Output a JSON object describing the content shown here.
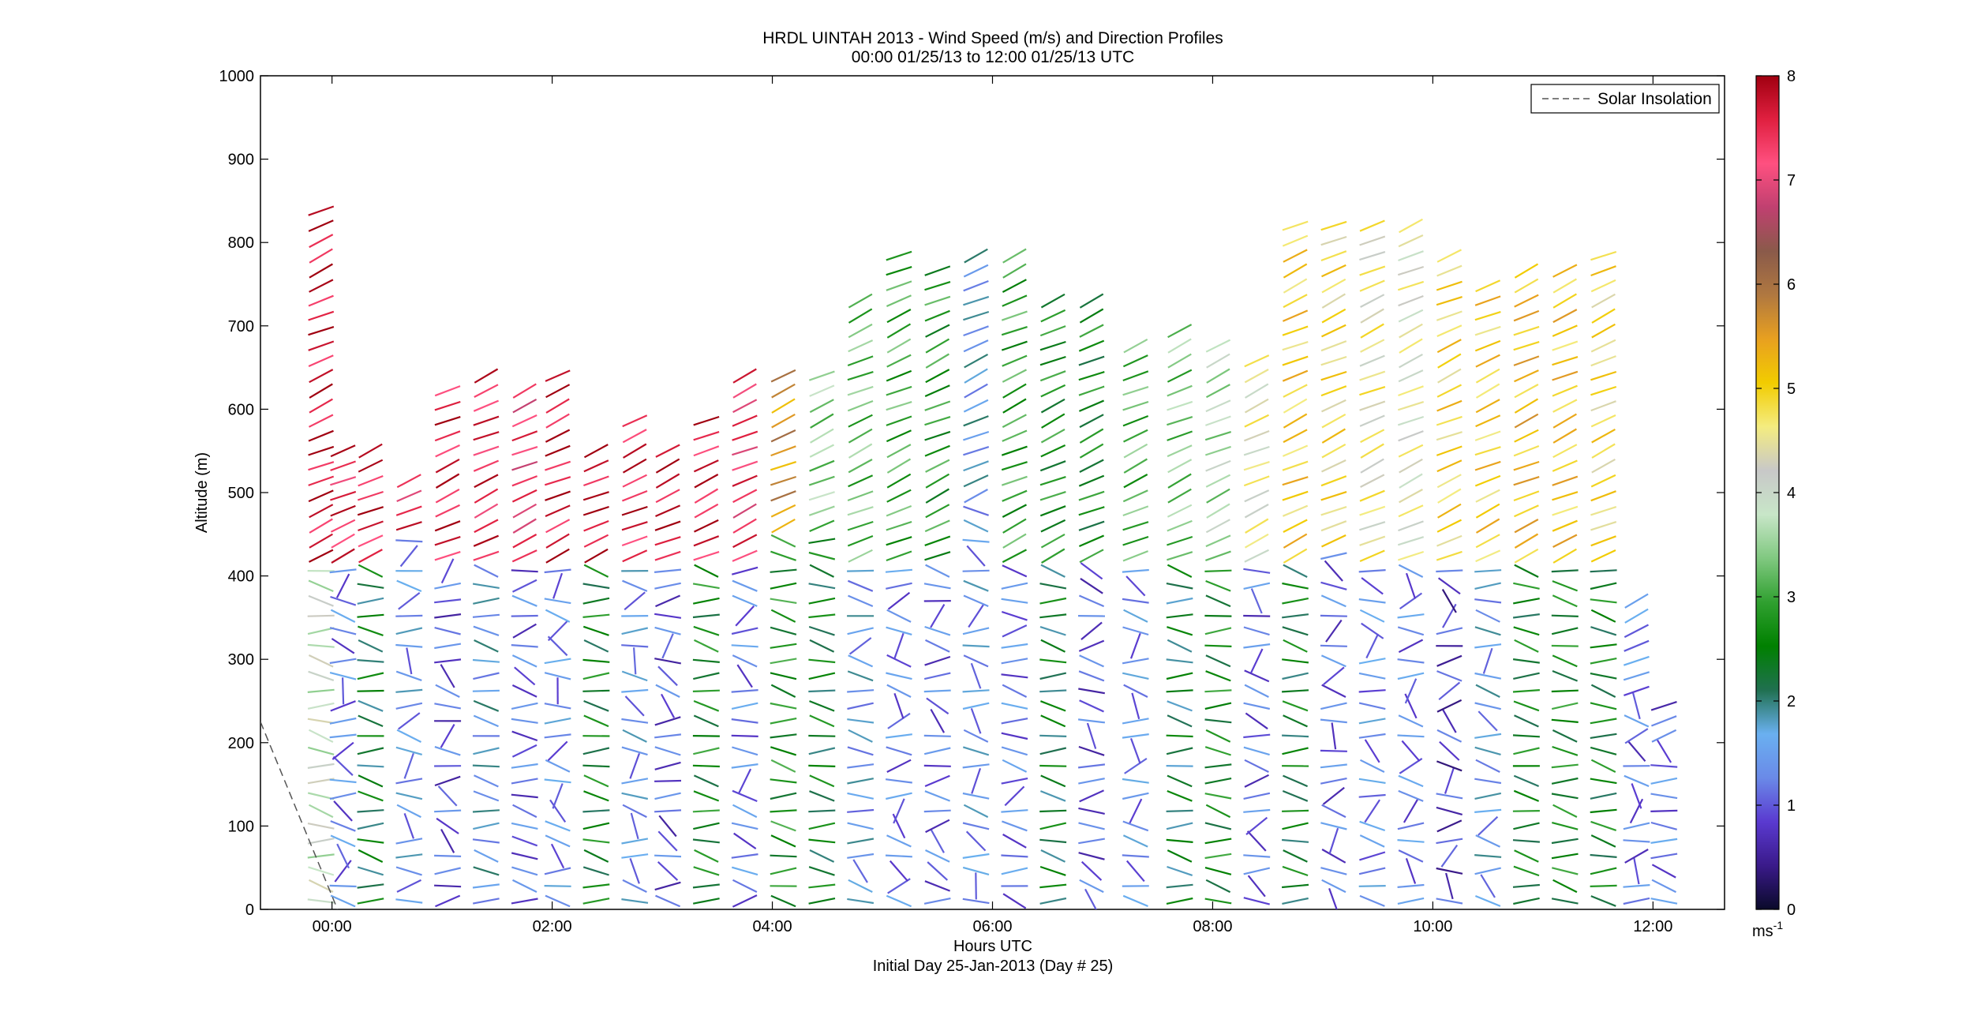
{
  "chart_data": {
    "type": "wind-barb-profile",
    "title": "HRDL UINTAH 2013 - Wind Speed (m/s) and Direction Profiles",
    "subtitle": "00:00 01/25/13 to 12:00 01/25/13  UTC",
    "xlabel": "Hours UTC",
    "xlabel2": "Initial Day 25-Jan-2013 (Day # 25)",
    "ylabel": "Altitude (m)",
    "xlim": [
      -0.65,
      12.65
    ],
    "ylim": [
      0,
      1000
    ],
    "xticks": [
      0,
      2,
      4,
      6,
      8,
      10,
      12
    ],
    "xtick_labels": [
      "00:00",
      "02:00",
      "04:00",
      "06:00",
      "08:00",
      "10:00",
      "12:00"
    ],
    "yticks": [
      0,
      100,
      200,
      300,
      400,
      500,
      600,
      700,
      800,
      900,
      1000
    ],
    "ytick_labels": [
      "0",
      "100",
      "200",
      "300",
      "400",
      "500",
      "600",
      "700",
      "800",
      "900",
      "1000"
    ],
    "colorbar": {
      "label": "ms",
      "label_exponent": "-1",
      "range": [
        0,
        8
      ],
      "ticks": [
        0,
        1,
        2,
        3,
        4,
        5,
        6,
        7,
        8
      ],
      "tick_labels": [
        "0",
        "1",
        "2",
        "3",
        "4",
        "5",
        "6",
        "7",
        "8"
      ],
      "colors": [
        "#0a0a2a",
        "#3a1a8a",
        "#5a3ad0",
        "#6a8ae8",
        "#6ab0f0",
        "#207050",
        "#008000",
        "#30a030",
        "#80c880",
        "#c8e6c8",
        "#c8c8c8",
        "#f4ec80",
        "#f2cc00",
        "#e8a020",
        "#b07840",
        "#8a5a4a",
        "#c04070",
        "#ff5080",
        "#e02040",
        "#a00010"
      ]
    },
    "legend": {
      "position": "top-right",
      "entries": [
        {
          "label": "Solar Insolation",
          "style": "dashed"
        }
      ]
    },
    "solar_insolation": {
      "x": [
        -0.65,
        0.05
      ],
      "y": [
        225,
        0
      ]
    },
    "profiles": [
      {
        "time": -0.1,
        "top": 850,
        "upper_speed": 7.7,
        "lower_speed": 3.9,
        "split": 420
      },
      {
        "time": 0.1,
        "top": 550,
        "upper_speed": 7.5,
        "lower_speed": 1.2,
        "split": 420
      },
      {
        "time": 0.35,
        "top": 560,
        "upper_speed": 7.6,
        "lower_speed": 2.3,
        "split": 420
      },
      {
        "time": 0.7,
        "top": 530,
        "upper_speed": 7.4,
        "lower_speed": 1.4,
        "split": 450
      },
      {
        "time": 1.05,
        "top": 630,
        "upper_speed": 7.6,
        "lower_speed": 1.0,
        "split": 420
      },
      {
        "time": 1.4,
        "top": 640,
        "upper_speed": 7.5,
        "lower_speed": 1.6,
        "split": 420
      },
      {
        "time": 1.75,
        "top": 630,
        "upper_speed": 7.2,
        "lower_speed": 1.1,
        "split": 420
      },
      {
        "time": 2.05,
        "top": 640,
        "upper_speed": 7.7,
        "lower_speed": 1.3,
        "split": 420
      },
      {
        "time": 2.4,
        "top": 560,
        "upper_speed": 7.8,
        "lower_speed": 2.5,
        "split": 420
      },
      {
        "time": 2.75,
        "top": 600,
        "upper_speed": 7.6,
        "lower_speed": 1.4,
        "split": 420
      },
      {
        "time": 3.05,
        "top": 560,
        "upper_speed": 7.8,
        "lower_speed": 1.0,
        "split": 420
      },
      {
        "time": 3.4,
        "top": 600,
        "upper_speed": 7.6,
        "lower_speed": 2.6,
        "split": 420
      },
      {
        "time": 3.75,
        "top": 640,
        "upper_speed": 7.3,
        "lower_speed": 1.2,
        "split": 420
      },
      {
        "time": 4.1,
        "top": 640,
        "upper_speed": 5.6,
        "lower_speed": 2.7,
        "split": 450
      },
      {
        "time": 4.45,
        "top": 640,
        "upper_speed": 3.4,
        "lower_speed": 2.4,
        "split": 450
      },
      {
        "time": 4.8,
        "top": 740,
        "upper_speed": 3.2,
        "lower_speed": 1.5,
        "split": 420
      },
      {
        "time": 5.15,
        "top": 790,
        "upper_speed": 3.0,
        "lower_speed": 1.2,
        "split": 420
      },
      {
        "time": 5.5,
        "top": 780,
        "upper_speed": 2.8,
        "lower_speed": 1.1,
        "split": 420
      },
      {
        "time": 5.85,
        "top": 790,
        "upper_speed": 1.6,
        "lower_speed": 1.4,
        "split": 480
      },
      {
        "time": 6.2,
        "top": 790,
        "upper_speed": 2.9,
        "lower_speed": 1.2,
        "split": 420
      },
      {
        "time": 6.55,
        "top": 730,
        "upper_speed": 2.7,
        "lower_speed": 2.3,
        "split": 420
      },
      {
        "time": 6.9,
        "top": 740,
        "upper_speed": 2.6,
        "lower_speed": 1.0,
        "split": 420
      },
      {
        "time": 7.3,
        "top": 690,
        "upper_speed": 3.1,
        "lower_speed": 1.3,
        "split": 420
      },
      {
        "time": 7.7,
        "top": 700,
        "upper_speed": 3.3,
        "lower_speed": 2.2,
        "split": 420
      },
      {
        "time": 8.05,
        "top": 690,
        "upper_speed": 3.6,
        "lower_speed": 2.6,
        "split": 420
      },
      {
        "time": 8.4,
        "top": 660,
        "upper_speed": 4.4,
        "lower_speed": 1.1,
        "split": 420
      },
      {
        "time": 8.75,
        "top": 830,
        "upper_speed": 5.0,
        "lower_speed": 2.4,
        "split": 420
      },
      {
        "time": 9.1,
        "top": 830,
        "upper_speed": 4.8,
        "lower_speed": 1.1,
        "split": 440
      },
      {
        "time": 9.45,
        "top": 830,
        "upper_speed": 4.5,
        "lower_speed": 1.3,
        "split": 420
      },
      {
        "time": 9.8,
        "top": 830,
        "upper_speed": 4.3,
        "lower_speed": 1.2,
        "split": 420
      },
      {
        "time": 10.15,
        "top": 790,
        "upper_speed": 4.9,
        "lower_speed": 0.8,
        "split": 420
      },
      {
        "time": 10.5,
        "top": 760,
        "upper_speed": 5.0,
        "lower_speed": 1.5,
        "split": 420
      },
      {
        "time": 10.85,
        "top": 770,
        "upper_speed": 5.2,
        "lower_speed": 2.5,
        "split": 420
      },
      {
        "time": 11.2,
        "top": 770,
        "upper_speed": 5.1,
        "lower_speed": 2.6,
        "split": 420
      },
      {
        "time": 11.55,
        "top": 790,
        "upper_speed": 4.8,
        "lower_speed": 2.5,
        "split": 420
      },
      {
        "time": 11.85,
        "top": 380,
        "upper_speed": 1.3,
        "lower_speed": 1.1,
        "split": 260
      },
      {
        "time": 12.1,
        "top": 260,
        "upper_speed": 1.0,
        "lower_speed": 1.2,
        "split": 200
      }
    ]
  }
}
